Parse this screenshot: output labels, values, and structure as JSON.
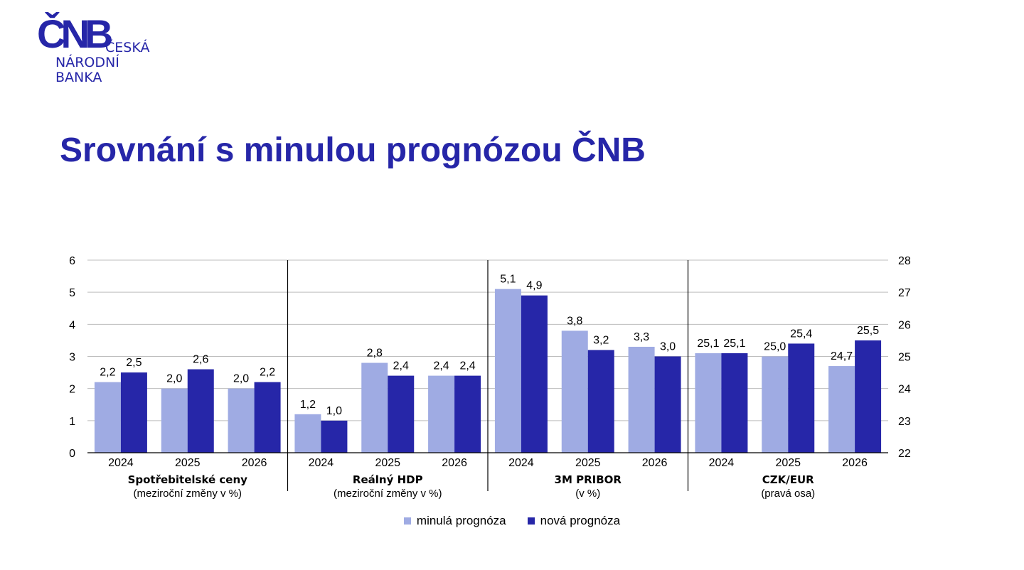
{
  "logo": {
    "mark": "ČNB",
    "line1": "ČESKÁ",
    "line2": "NÁRODNÍ",
    "line3": "BANKA"
  },
  "title": "Srovnání s minulou prognózou ČNB",
  "colors": {
    "old": "#9fabe3",
    "new": "#2626a8",
    "grid": "#bdbdbd",
    "separator": "#000000"
  },
  "legend": {
    "old": "minulá prognóza",
    "new": "nová prognóza"
  },
  "chart_data": {
    "type": "bar",
    "y_left": {
      "min": 0,
      "max": 6,
      "ticks": [
        "0",
        "1",
        "2",
        "3",
        "4",
        "5",
        "6"
      ]
    },
    "y_right": {
      "min": 22,
      "max": 28,
      "ticks": [
        "22",
        "23",
        "24",
        "25",
        "26",
        "27",
        "28"
      ]
    },
    "grid": true,
    "legend_position": "bottom",
    "series": [
      {
        "name": "minulá prognóza"
      },
      {
        "name": "nová prognóza"
      }
    ],
    "groups": [
      {
        "name": "Spotřebitelské ceny",
        "sub": "(meziroční změny v %)",
        "axis": "left",
        "categories": [
          "2024",
          "2025",
          "2026"
        ],
        "old": [
          2.2,
          2.0,
          2.0
        ],
        "new": [
          2.5,
          2.6,
          2.2
        ],
        "old_labels": [
          "2,2",
          "2,0",
          "2,0"
        ],
        "new_labels": [
          "2,5",
          "2,6",
          "2,2"
        ]
      },
      {
        "name": "Reálný HDP",
        "sub": "(meziroční změny v %)",
        "axis": "left",
        "categories": [
          "2024",
          "2025",
          "2026"
        ],
        "old": [
          1.2,
          2.8,
          2.4
        ],
        "new": [
          1.0,
          2.4,
          2.4
        ],
        "old_labels": [
          "1,2",
          "2,8",
          "2,4"
        ],
        "new_labels": [
          "1,0",
          "2,4",
          "2,4"
        ]
      },
      {
        "name": "3M PRIBOR",
        "sub": "(v %)",
        "axis": "left",
        "categories": [
          "2024",
          "2025",
          "2026"
        ],
        "old": [
          5.1,
          3.8,
          3.3
        ],
        "new": [
          4.9,
          3.2,
          3.0
        ],
        "old_labels": [
          "5,1",
          "3,8",
          "3,3"
        ],
        "new_labels": [
          "4,9",
          "3,2",
          "3,0"
        ]
      },
      {
        "name": "CZK/EUR",
        "sub": "(pravá osa)",
        "axis": "right",
        "categories": [
          "2024",
          "2025",
          "2026"
        ],
        "old": [
          25.1,
          25.0,
          24.7
        ],
        "new": [
          25.1,
          25.4,
          25.5
        ],
        "old_labels": [
          "25,1",
          "25,0",
          "24,7"
        ],
        "new_labels": [
          "25,1",
          "25,4",
          "25,5"
        ]
      }
    ]
  }
}
